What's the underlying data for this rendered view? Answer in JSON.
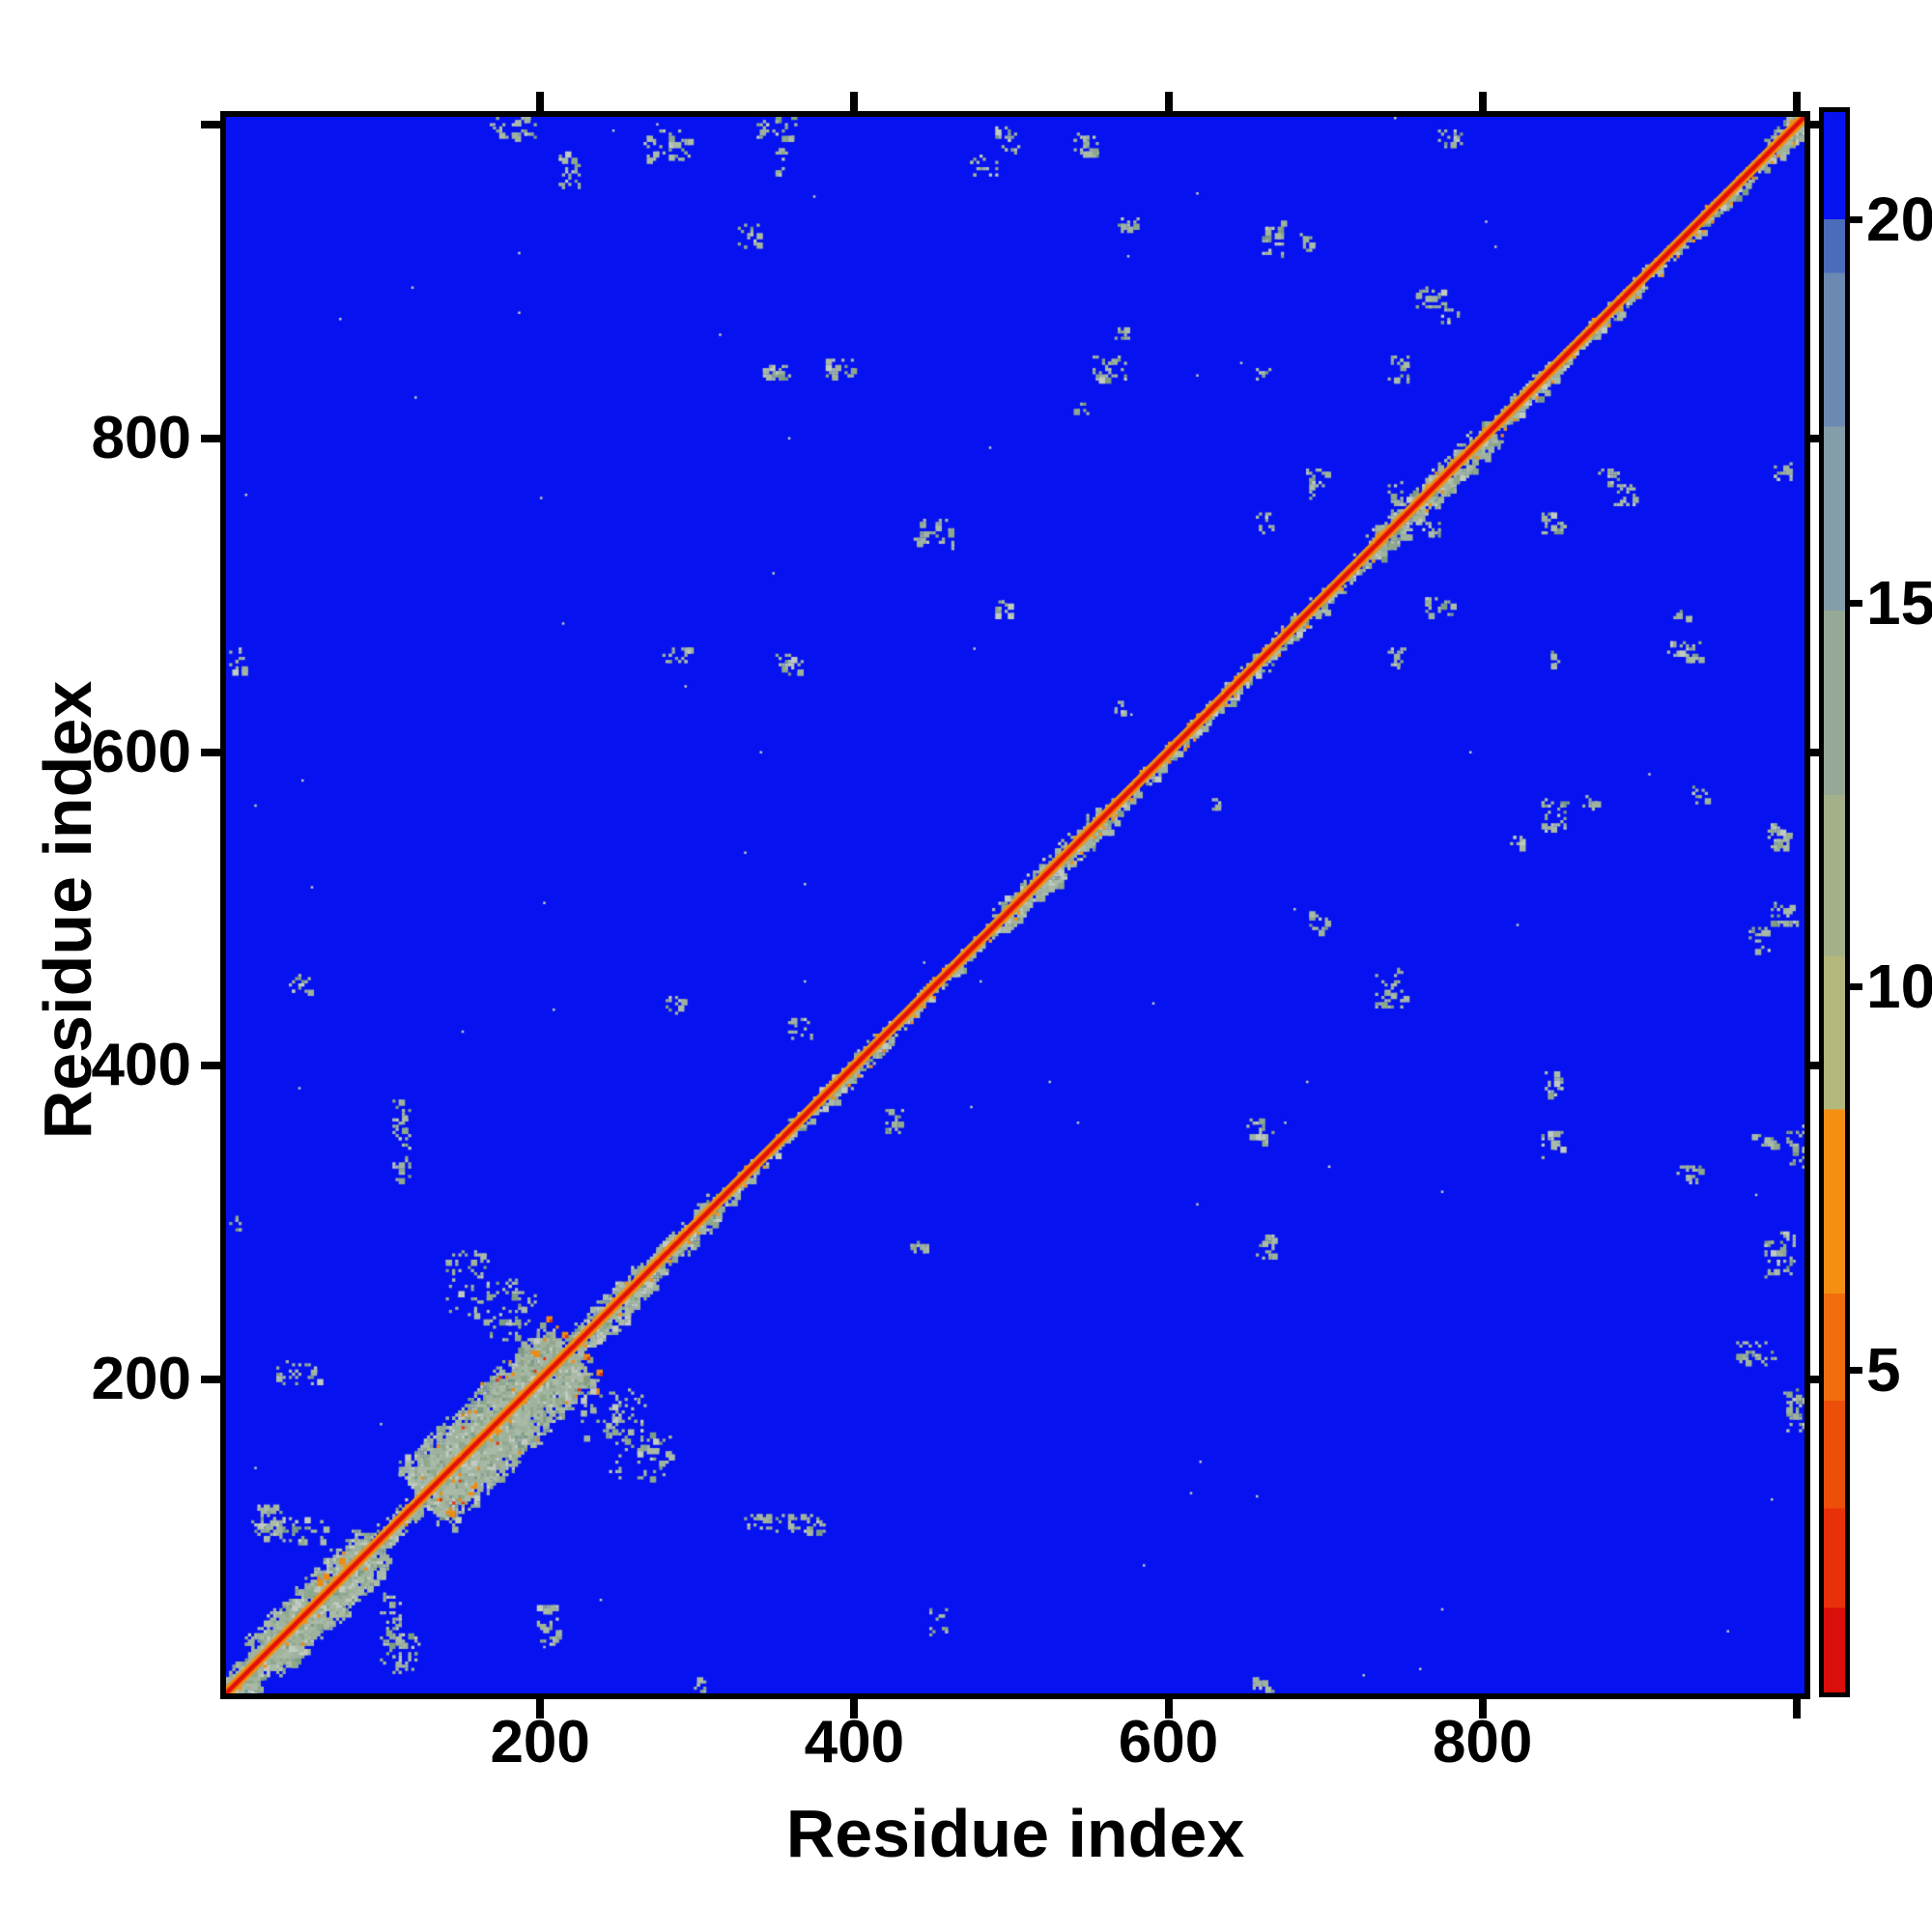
{
  "figure": {
    "x_axis_label": "Residue index",
    "y_axis_label": "Residue index"
  },
  "chart_data": {
    "type": "heatmap",
    "title": "",
    "xlabel": "Residue index",
    "ylabel": "Residue index",
    "x_range": [
      0,
      1005
    ],
    "y_range": [
      0,
      1005
    ],
    "x_ticks_labeled": [
      200,
      400,
      600,
      800
    ],
    "y_ticks_labeled": [
      200,
      400,
      600,
      800
    ],
    "x_ticks_unlabeled": [
      1000
    ],
    "y_ticks_unlabeled": [
      1000
    ],
    "grid": false,
    "pattern_note": "symmetric residue-residue distance map: red diagonal with orange fringe, pale speckled contact clusters on blue background",
    "colors": {
      "map_blue": "#0712f0",
      "frame": "#000000",
      "diag_red": "#e31008",
      "diag_orange": "#ec6206",
      "diag_orange_light": "#f39012",
      "accent_orange": "#ef8a10",
      "accent_red": "#e8320a",
      "sage": [
        "#9fb29d",
        "#a9bba7",
        "#8ea88c",
        "#c0cabf",
        "#7d9c84"
      ]
    },
    "colorbar": {
      "value_min": 0.8,
      "value_max": 21.4,
      "ticks": [
        20,
        15,
        10,
        5
      ],
      "tick_labels": [
        "20",
        "15",
        "10",
        "5"
      ],
      "bands": [
        {
          "v0": 0.8,
          "v1": 1.9,
          "c": "#db0e0b"
        },
        {
          "v0": 1.9,
          "v1": 3.2,
          "c": "#e8300a"
        },
        {
          "v0": 3.2,
          "v1": 4.6,
          "c": "#ed4f0a"
        },
        {
          "v0": 4.6,
          "v1": 6.0,
          "c": "#f16d0e"
        },
        {
          "v0": 6.0,
          "v1": 8.4,
          "c": "#f58f13"
        },
        {
          "v0": 8.4,
          "v1": 10.4,
          "c": "#b2b77c"
        },
        {
          "v0": 10.4,
          "v1": 12.5,
          "c": "#a4b089"
        },
        {
          "v0": 12.5,
          "v1": 14.9,
          "c": "#96a997"
        },
        {
          "v0": 14.9,
          "v1": 17.3,
          "c": "#849da8"
        },
        {
          "v0": 17.3,
          "v1": 19.3,
          "c": "#6b89b1"
        },
        {
          "v0": 19.3,
          "v1": 20.0,
          "c": "#4a6cba"
        },
        {
          "v0": 20.0,
          "v1": 21.4,
          "c": "#0712f0"
        }
      ]
    },
    "diagonal_segments": [
      {
        "r0": 0,
        "r1": 22,
        "hw": 18,
        "d": 0.9
      },
      {
        "r0": 22,
        "r1": 95,
        "hw": 30,
        "d": 0.85
      },
      {
        "r0": 95,
        "r1": 125,
        "hw": 13,
        "d": 0.5
      },
      {
        "r0": 125,
        "r1": 218,
        "hw": 45,
        "d": 1.05
      },
      {
        "r0": 218,
        "r1": 270,
        "hw": 19,
        "d": 0.55
      },
      {
        "r0": 270,
        "r1": 312,
        "hw": 15,
        "d": 0.5
      },
      {
        "r0": 312,
        "r1": 380,
        "hw": 9,
        "d": 0.4
      },
      {
        "r0": 380,
        "r1": 426,
        "hw": 12,
        "d": 0.45
      },
      {
        "r0": 426,
        "r1": 490,
        "hw": 9,
        "d": 0.4
      },
      {
        "r0": 490,
        "r1": 562,
        "hw": 16,
        "d": 0.5
      },
      {
        "r0": 562,
        "r1": 630,
        "hw": 10,
        "d": 0.4
      },
      {
        "r0": 630,
        "r1": 686,
        "hw": 12,
        "d": 0.45
      },
      {
        "r0": 686,
        "r1": 730,
        "hw": 10,
        "d": 0.4
      },
      {
        "r0": 730,
        "r1": 806,
        "hw": 17,
        "d": 0.55
      },
      {
        "r0": 806,
        "r1": 846,
        "hw": 11,
        "d": 0.45
      },
      {
        "r0": 846,
        "r1": 896,
        "hw": 10,
        "d": 0.4
      },
      {
        "r0": 896,
        "r1": 984,
        "hw": 9,
        "d": 0.38
      },
      {
        "r0": 984,
        "r1": 1005,
        "hw": 15,
        "d": 0.7
      }
    ],
    "cluster_streaks": [
      {
        "r0": 133,
        "r1": 210,
        "offset": 24
      },
      {
        "r0": 30,
        "r1": 75,
        "offset": 15
      }
    ],
    "patches": [
      {
        "x": 26,
        "y": 113,
        "w": 24,
        "h": 18,
        "n": 34
      },
      {
        "x": 105,
        "y": 42,
        "w": 14,
        "h": 46,
        "n": 48
      },
      {
        "x": 45,
        "y": 205,
        "w": 28,
        "h": 14,
        "n": 28
      },
      {
        "x": 110,
        "y": 354,
        "w": 12,
        "h": 52,
        "n": 46
      },
      {
        "x": 180,
        "y": 256,
        "w": 30,
        "h": 18,
        "n": 34
      },
      {
        "x": 237,
        "y": 178,
        "w": 22,
        "h": 30,
        "n": 34
      },
      {
        "x": 262,
        "y": 152,
        "w": 40,
        "h": 28,
        "n": 52
      },
      {
        "x": 286,
        "y": 661,
        "w": 16,
        "h": 12,
        "n": 18
      },
      {
        "x": 360,
        "y": 655,
        "w": 14,
        "h": 10,
        "n": 14
      },
      {
        "x": 6,
        "y": 660,
        "w": 10,
        "h": 14,
        "n": 12
      },
      {
        "x": 47,
        "y": 453,
        "w": 16,
        "h": 12,
        "n": 16
      },
      {
        "x": 286,
        "y": 440,
        "w": 12,
        "h": 10,
        "n": 12
      },
      {
        "x": 365,
        "y": 424,
        "w": 16,
        "h": 12,
        "n": 16
      },
      {
        "x": 6,
        "y": 300,
        "w": 8,
        "h": 10,
        "n": 9
      },
      {
        "x": 182,
        "y": 1000,
        "w": 30,
        "h": 16,
        "n": 40
      },
      {
        "x": 350,
        "y": 1004,
        "w": 26,
        "h": 22,
        "n": 46
      },
      {
        "x": 353,
        "y": 978,
        "w": 8,
        "h": 18,
        "n": 12
      },
      {
        "x": 218,
        "y": 973,
        "w": 14,
        "h": 26,
        "n": 30
      },
      {
        "x": 482,
        "y": 975,
        "w": 16,
        "h": 12,
        "n": 16
      },
      {
        "x": 574,
        "y": 937,
        "w": 12,
        "h": 10,
        "n": 12
      },
      {
        "x": 547,
        "y": 988,
        "w": 16,
        "h": 12,
        "n": 18
      },
      {
        "x": 562,
        "y": 845,
        "w": 22,
        "h": 16,
        "n": 30
      },
      {
        "x": 390,
        "y": 845,
        "w": 16,
        "h": 12,
        "n": 20
      },
      {
        "x": 350,
        "y": 843,
        "w": 18,
        "h": 12,
        "n": 20
      },
      {
        "x": 660,
        "y": 843,
        "w": 10,
        "h": 8,
        "n": 10
      },
      {
        "x": 746,
        "y": 845,
        "w": 14,
        "h": 16,
        "n": 22
      },
      {
        "x": 568,
        "y": 868,
        "w": 10,
        "h": 8,
        "n": 10
      },
      {
        "x": 544,
        "y": 821,
        "w": 8,
        "h": 8,
        "n": 8
      },
      {
        "x": 694,
        "y": 772,
        "w": 12,
        "h": 18,
        "n": 20
      },
      {
        "x": 746,
        "y": 661,
        "w": 14,
        "h": 12,
        "n": 16
      },
      {
        "x": 568,
        "y": 629,
        "w": 8,
        "h": 8,
        "n": 8
      },
      {
        "x": 694,
        "y": 493,
        "w": 12,
        "h": 12,
        "n": 14
      },
      {
        "x": 740,
        "y": 450,
        "w": 18,
        "h": 24,
        "n": 32
      },
      {
        "x": 660,
        "y": 355,
        "w": 10,
        "h": 10,
        "n": 10
      },
      {
        "x": 930,
        "y": 332,
        "w": 16,
        "h": 12,
        "n": 18
      },
      {
        "x": 988,
        "y": 280,
        "w": 20,
        "h": 28,
        "n": 44
      },
      {
        "x": 991,
        "y": 497,
        "w": 16,
        "h": 14,
        "n": 22
      },
      {
        "x": 988,
        "y": 547,
        "w": 14,
        "h": 10,
        "n": 16
      },
      {
        "x": 766,
        "y": 890,
        "w": 18,
        "h": 12,
        "n": 24
      },
      {
        "x": 881,
        "y": 778,
        "w": 14,
        "h": 12,
        "n": 16
      },
      {
        "x": 991,
        "y": 778,
        "w": 12,
        "h": 14,
        "n": 16
      },
      {
        "x": 926,
        "y": 688,
        "w": 12,
        "h": 8,
        "n": 10
      },
      {
        "x": 928,
        "y": 666,
        "w": 22,
        "h": 12,
        "n": 28
      },
      {
        "x": 766,
        "y": 744,
        "w": 14,
        "h": 10,
        "n": 14
      }
    ],
    "orange_dots": [
      {
        "x": 205,
        "y": 238
      },
      {
        "x": 229,
        "y": 215
      }
    ],
    "stray_dots": 70
  }
}
